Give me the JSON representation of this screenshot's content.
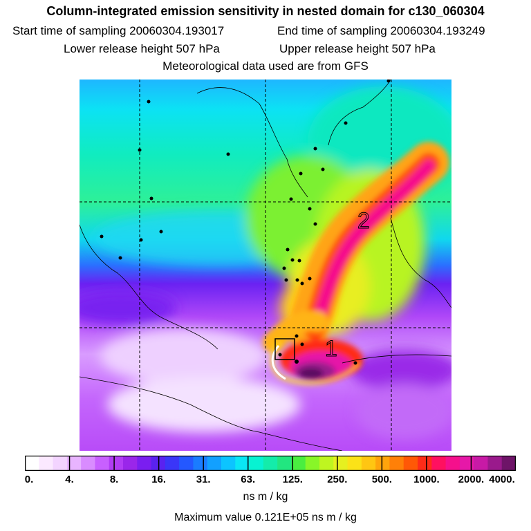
{
  "title": "Column-integrated emission sensitivity in nested domain for c130_060304",
  "start_time": "Start time of sampling 20060304.193017",
  "end_time": "End time of sampling 20060304.193249",
  "lower_release": "Lower release height  507 hPa",
  "upper_release": "Upper release height  507 hPa",
  "met_data": "Meteorological data used are from GFS",
  "map": {
    "domain_labels": [
      "2",
      "1"
    ]
  },
  "colorbar": {
    "tick_labels": [
      "0.",
      "4.",
      "8.",
      "16.",
      "31.",
      "63.",
      "125.",
      "250.",
      "500.",
      "1000.",
      "2000.",
      "4000."
    ],
    "colors": [
      "#ffffff",
      "#fbe9ff",
      "#f3d4ff",
      "#e8b4ff",
      "#d98cff",
      "#c860ff",
      "#b23cf5",
      "#9a26ea",
      "#7a1ef0",
      "#5a22f0",
      "#3a36f8",
      "#2458ff",
      "#1a7cff",
      "#12a0ff",
      "#0cc4ff",
      "#0ae6f5",
      "#08f2d2",
      "#14ecaa",
      "#22e680",
      "#4aee40",
      "#88f628",
      "#bff520",
      "#e6f020",
      "#fbe218",
      "#ffc612",
      "#ffa40c",
      "#ff8008",
      "#ff5806",
      "#ff2c18",
      "#ff1060",
      "#f5108c",
      "#e618a8",
      "#c81aa6",
      "#9a1a8c",
      "#6e1468"
    ],
    "unit": "ns m / kg"
  },
  "max_value": "Maximum value  0.121E+05 ns m / kg"
}
